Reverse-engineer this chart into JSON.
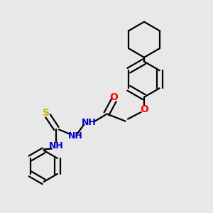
{
  "background_color": "#e8e8e8",
  "bond_color": "#000000",
  "O_color": "#ff0000",
  "N_color": "#0000cd",
  "S_color": "#c8b400",
  "line_width": 1.6,
  "figsize": [
    3.0,
    3.0
  ],
  "dpi": 100,
  "xlim": [
    0,
    10
  ],
  "ylim": [
    0,
    10
  ]
}
